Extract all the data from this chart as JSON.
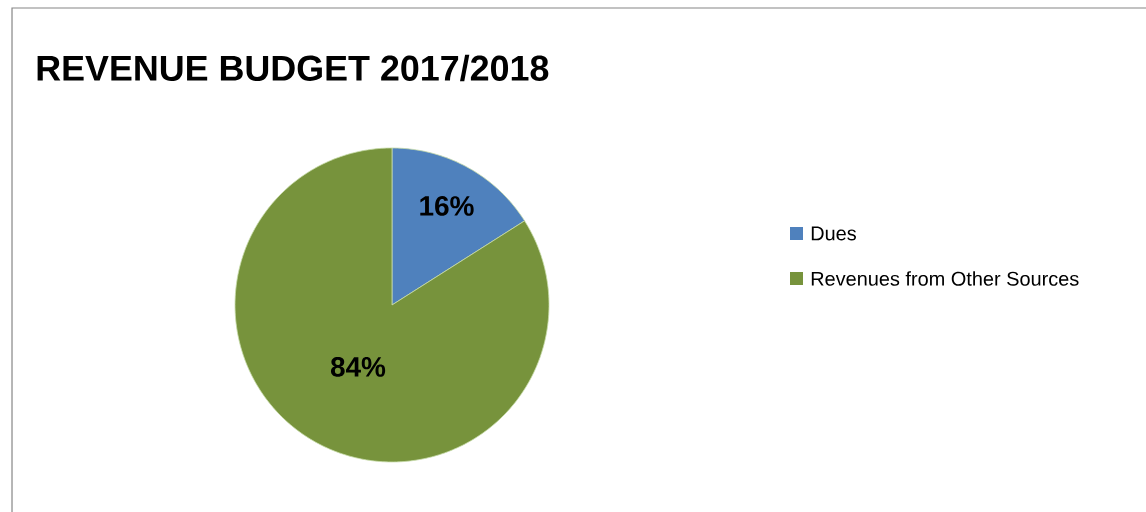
{
  "chart_data": {
    "type": "pie",
    "title": "REVENUE BUDGET 2017/2018",
    "categories": [
      "Dues",
      "Revenues from Other Sources"
    ],
    "values": [
      16,
      84
    ],
    "colors": [
      "#4f81bd",
      "#77933c"
    ],
    "value_labels": [
      "16%",
      "84%"
    ],
    "legend": "right"
  }
}
